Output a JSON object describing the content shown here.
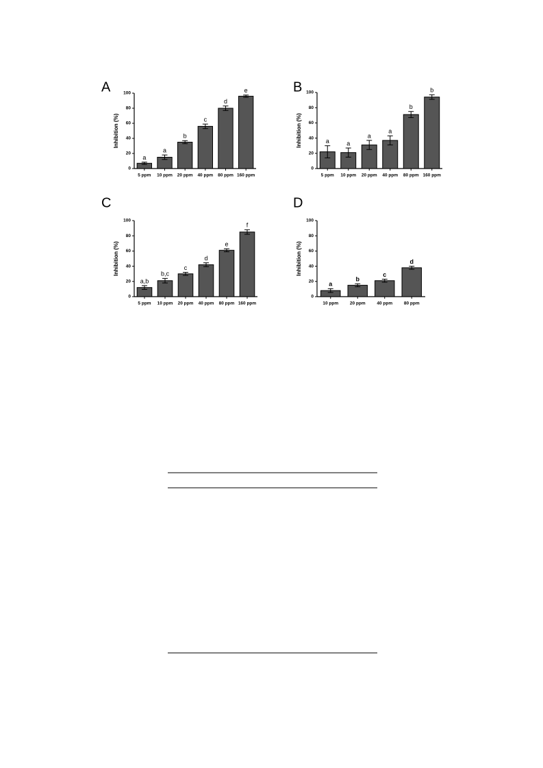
{
  "chart_data": [
    {
      "type": "bar",
      "label": "A",
      "ylabel": "Inhibition (%)",
      "categories": [
        "5 ppm",
        "10 ppm",
        "20 ppm",
        "40 ppm",
        "80 ppm",
        "160 ppm"
      ],
      "values": [
        7,
        15,
        35,
        56,
        80,
        96
      ],
      "errors": [
        1.5,
        3,
        2,
        3,
        3,
        1.5
      ],
      "annotations": [
        "a",
        "a",
        "b",
        "c",
        "d",
        "e"
      ],
      "color": "#555555",
      "ylim": [
        0,
        100
      ],
      "yticks": [
        0,
        20,
        40,
        60,
        80,
        100
      ]
    },
    {
      "type": "bar",
      "label": "B",
      "ylabel": "Inhibition (%)",
      "categories": [
        "5 ppm",
        "10 ppm",
        "20 ppm",
        "40 ppm",
        "80 ppm",
        "160 ppm"
      ],
      "values": [
        22,
        21,
        31,
        37,
        71,
        94
      ],
      "errors": [
        8,
        6,
        6,
        6,
        4,
        3
      ],
      "annotations": [
        "a",
        "a",
        "a",
        "a",
        "b",
        "b"
      ],
      "color": "#555555",
      "ylim": [
        0,
        100
      ],
      "yticks": [
        0,
        20,
        40,
        60,
        80,
        100
      ]
    },
    {
      "type": "bar",
      "label": "C",
      "ylabel": "Inhibition (%)",
      "categories": [
        "5 ppm",
        "10 ppm",
        "20 ppm",
        "40 ppm",
        "80 ppm",
        "160 ppm"
      ],
      "values": [
        12,
        21,
        30,
        42,
        61,
        85
      ],
      "errors": [
        2.5,
        3,
        2,
        2.5,
        2,
        3
      ],
      "annotations": [
        "a,b",
        "b,c",
        "c",
        "d",
        "e",
        "f"
      ],
      "color": "#555555",
      "ylim": [
        0,
        100
      ],
      "yticks": [
        0,
        20,
        40,
        60,
        80,
        100
      ]
    },
    {
      "type": "bar",
      "label": "D",
      "ylabel": "Inhibition (%)",
      "categories": [
        "10 ppm",
        "20 ppm",
        "40 ppm",
        "80 ppm"
      ],
      "values": [
        8,
        15,
        21,
        38
      ],
      "errors": [
        2.5,
        2,
        2,
        2
      ],
      "annotations": [
        "a",
        "b",
        "c",
        "d"
      ],
      "annotation_bold": true,
      "color": "#555555",
      "ylim": [
        0,
        100
      ],
      "yticks": [
        0,
        20,
        40,
        60,
        80,
        100
      ]
    }
  ]
}
